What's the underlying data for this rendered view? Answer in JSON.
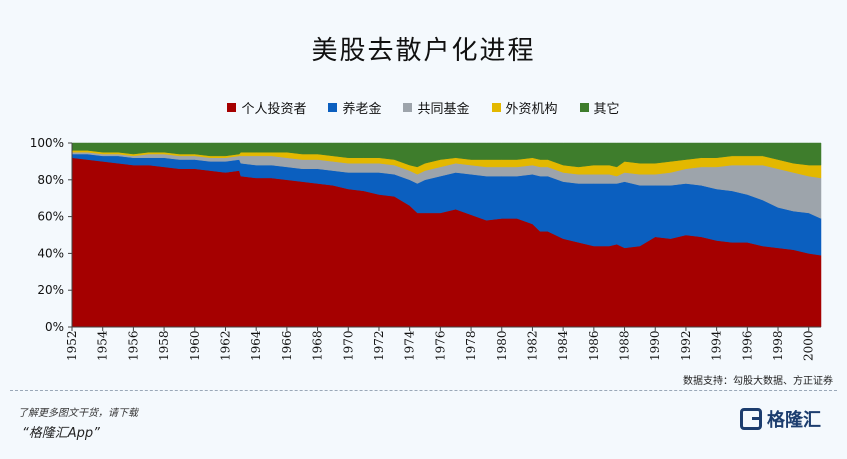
{
  "page": {
    "title": "美股去散户化进程",
    "source": "数据支持：勾股大数据、方正证券",
    "cta": "了解更多图文干货，请下载",
    "app": "“格隆汇App”",
    "logo_text": "格隆汇"
  },
  "chart_data": {
    "type": "area",
    "stacked": true,
    "title": "美股去散户化进程",
    "xlabel": "",
    "ylabel": "",
    "xlim": [
      1952,
      2000.8
    ],
    "ylim": [
      0,
      100
    ],
    "y_ticks": [
      "0%",
      "20%",
      "40%",
      "60%",
      "80%",
      "100%"
    ],
    "x_ticks": [
      "1952",
      "1954",
      "1956",
      "1958",
      "1960",
      "1962",
      "1964",
      "1966",
      "1968",
      "1970",
      "1972",
      "1974",
      "1976",
      "1978",
      "1980",
      "1982",
      "1984",
      "1986",
      "1988",
      "1990",
      "1992",
      "1994",
      "1996",
      "1998",
      "2000"
    ],
    "legend_position": "top",
    "x": [
      1952,
      1953,
      1954,
      1955,
      1956,
      1957,
      1958,
      1959,
      1960,
      1961,
      1962,
      1962.9,
      1963,
      1964,
      1965,
      1966,
      1967,
      1968,
      1969,
      1970,
      1971,
      1972,
      1973,
      1974,
      1974.5,
      1975,
      1976,
      1977,
      1978,
      1979,
      1980,
      1981,
      1982,
      1982.5,
      1983,
      1984,
      1985,
      1986,
      1987,
      1987.5,
      1988,
      1989,
      1990,
      1991,
      1992,
      1993,
      1994,
      1995,
      1996,
      1997,
      1998,
      1999,
      2000,
      2000.8
    ],
    "series": [
      {
        "name": "个人投资者",
        "color": "#a50000",
        "values": [
          92,
          91,
          90,
          89,
          88,
          88,
          87,
          86,
          86,
          85,
          84,
          85,
          82,
          81,
          81,
          80,
          79,
          78,
          77,
          75,
          74,
          72,
          71,
          66,
          62,
          62,
          62,
          64,
          61,
          58,
          59,
          59,
          56,
          52,
          52,
          48,
          46,
          44,
          44,
          45,
          43,
          44,
          49,
          48,
          50,
          49,
          47,
          46,
          46,
          44,
          43,
          42,
          40,
          39
        ]
      },
      {
        "name": "养老金",
        "color": "#0b5fbf",
        "values": [
          2,
          3,
          3,
          4,
          4,
          4,
          5,
          5,
          5,
          5,
          6,
          6,
          7,
          7,
          7,
          7,
          7,
          8,
          8,
          9,
          10,
          12,
          12,
          14,
          16,
          18,
          20,
          20,
          22,
          24,
          23,
          23,
          27,
          30,
          30,
          31,
          32,
          34,
          34,
          33,
          36,
          33,
          28,
          29,
          28,
          28,
          28,
          28,
          26,
          25,
          22,
          21,
          22,
          20
        ]
      },
      {
        "name": "共同基金",
        "color": "#9da4ab",
        "values": [
          1,
          1,
          1,
          1,
          1,
          2,
          2,
          2,
          2,
          2,
          2,
          2,
          4,
          5,
          5,
          5,
          5,
          5,
          5,
          5,
          5,
          5,
          5,
          5,
          5,
          5,
          5,
          5,
          5,
          5,
          5,
          5,
          5,
          5,
          5,
          5,
          5,
          5,
          5,
          4,
          5,
          6,
          6,
          7,
          8,
          10,
          12,
          14,
          16,
          19,
          21,
          21,
          20,
          22
        ]
      },
      {
        "name": "外资机构",
        "color": "#e3b800",
        "values": [
          1,
          1,
          1,
          1,
          1,
          1,
          1,
          1,
          1,
          1,
          1,
          1,
          2,
          2,
          2,
          3,
          3,
          3,
          3,
          3,
          3,
          3,
          3,
          3,
          4,
          4,
          4,
          3,
          3,
          4,
          4,
          4,
          4,
          4,
          4,
          4,
          4,
          5,
          5,
          5,
          6,
          6,
          6,
          6,
          5,
          5,
          5,
          5,
          5,
          5,
          5,
          5,
          6,
          7
        ]
      },
      {
        "name": "其它",
        "color": "#3e7d2c",
        "values": [
          4,
          4,
          5,
          5,
          6,
          5,
          5,
          6,
          6,
          7,
          7,
          6,
          5,
          5,
          5,
          5,
          6,
          6,
          7,
          8,
          8,
          8,
          9,
          12,
          13,
          11,
          9,
          8,
          9,
          9,
          9,
          9,
          8,
          9,
          9,
          12,
          13,
          12,
          12,
          13,
          10,
          11,
          11,
          10,
          9,
          8,
          8,
          7,
          7,
          7,
          9,
          11,
          12,
          12
        ]
      }
    ]
  }
}
